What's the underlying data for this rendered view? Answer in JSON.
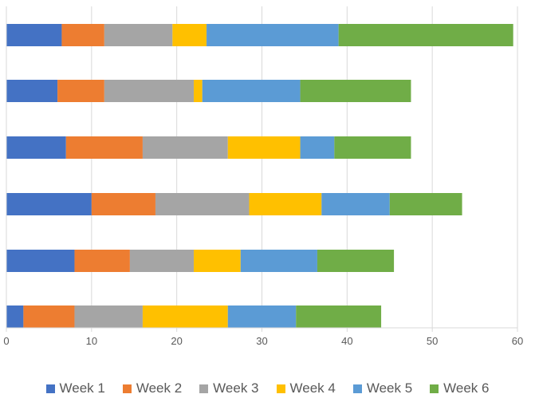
{
  "chart_data": {
    "type": "bar",
    "orientation": "horizontal",
    "stacked": true,
    "title": "",
    "xlabel": "",
    "ylabel": "",
    "xlim": [
      0,
      60
    ],
    "xticks": [
      "0",
      "10",
      "20",
      "30",
      "40",
      "50",
      "60"
    ],
    "grid": true,
    "legend_position": "bottom",
    "categories": [
      "",
      "",
      "",
      "",
      "",
      ""
    ],
    "series": [
      {
        "name": "Week 1",
        "color": "#4472C4",
        "values": [
          6.5,
          6,
          7,
          10,
          8,
          2
        ]
      },
      {
        "name": "Week 2",
        "color": "#ED7D31",
        "values": [
          5,
          5.5,
          9,
          7.5,
          6.5,
          6
        ]
      },
      {
        "name": "Week 3",
        "color": "#A5A5A5",
        "values": [
          8,
          10.5,
          10,
          11,
          7.5,
          8
        ]
      },
      {
        "name": "Week 4",
        "color": "#FFC000",
        "values": [
          4,
          1,
          8.5,
          8.5,
          5.5,
          10
        ]
      },
      {
        "name": "Week 5",
        "color": "#5B9BD5",
        "values": [
          15.5,
          11.5,
          4,
          8,
          9,
          8
        ]
      },
      {
        "name": "Week 6",
        "color": "#70AD47",
        "values": [
          20.5,
          13,
          9,
          8.5,
          9,
          10
        ]
      }
    ]
  }
}
